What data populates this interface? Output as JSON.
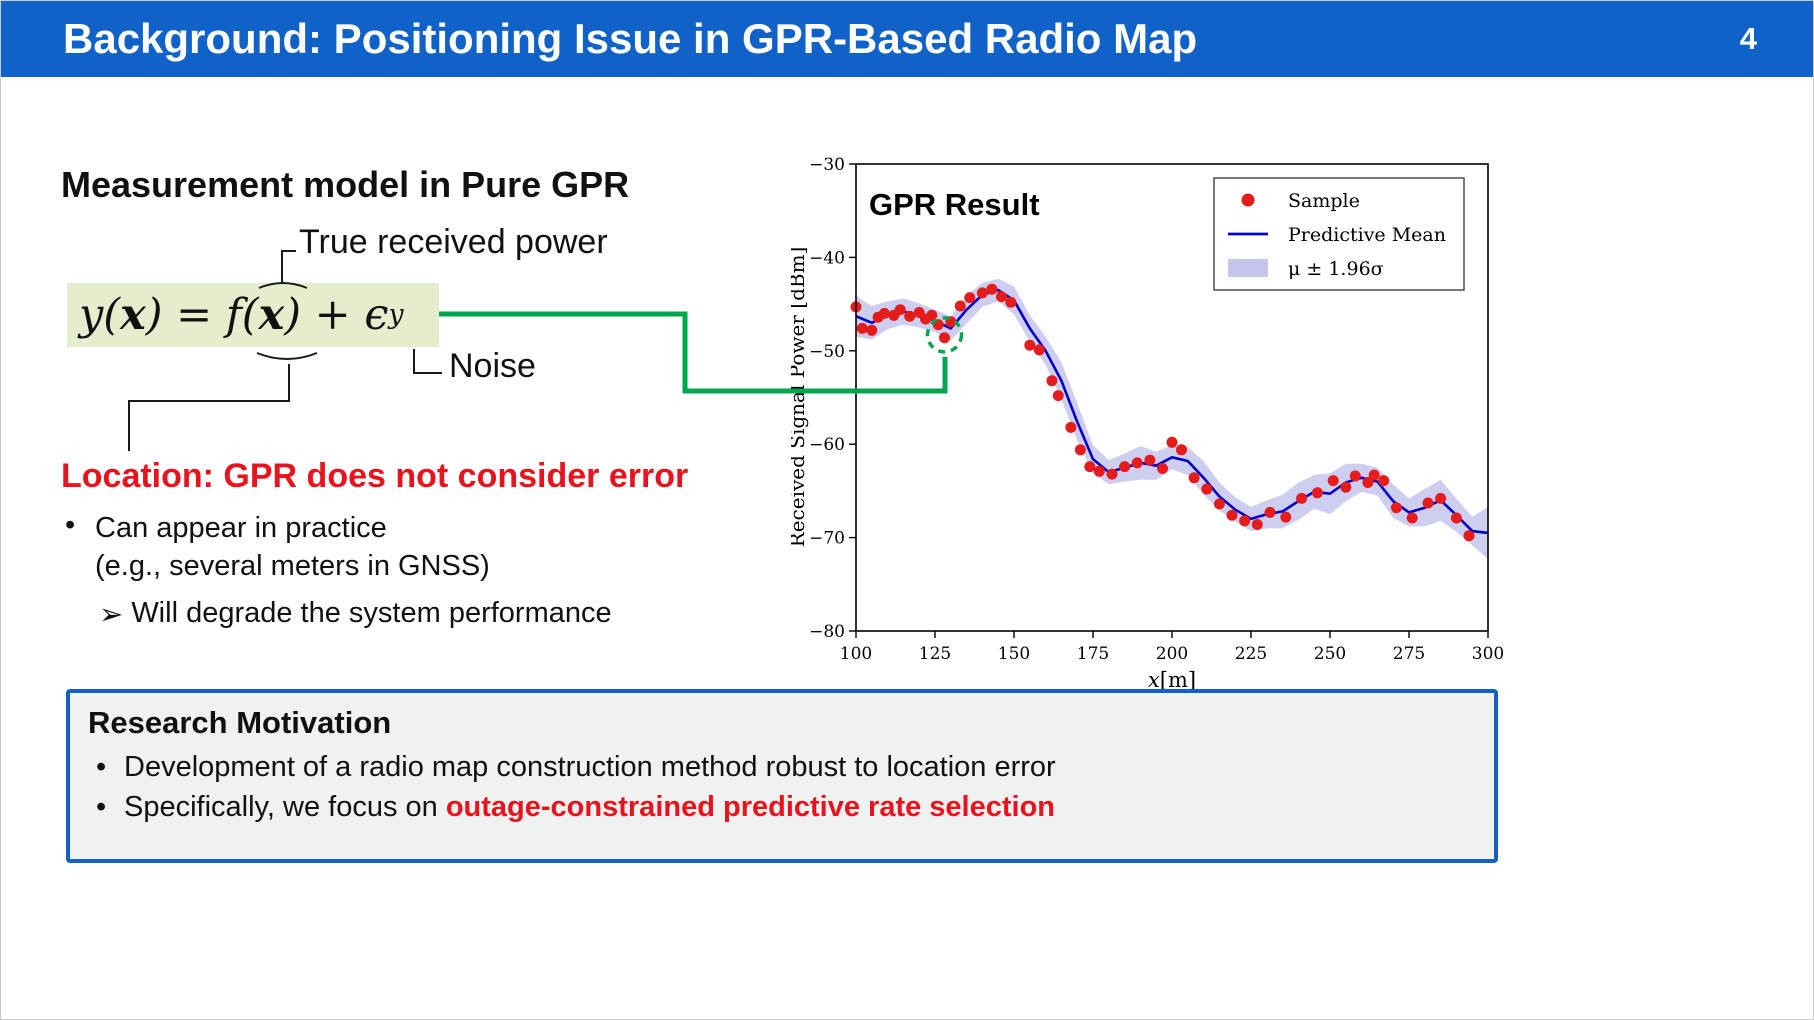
{
  "colors": {
    "header_blue": "#1062c9",
    "accent_red": "#e8131d",
    "connector_green": "#00a550",
    "formula_highlight_green": "#e4eecd",
    "chart_mean_blue": "#0000cc",
    "chart_sample_red": "#e51c1c",
    "chart_band_lavender": "#8b8bdc"
  },
  "header": {
    "title": "Background: Positioning Issue in GPR-Based Radio Map",
    "page_number": "4"
  },
  "left": {
    "heading": "Measurement model in Pure GPR",
    "true_power_label": "True received power",
    "formula": {
      "pre": "y(",
      "x1": "x",
      "mid": ") = f(",
      "x2": "x",
      "post": ") + ϵ",
      "sub": "y"
    },
    "noise_label": "Noise",
    "location_heading": "Location: GPR does not consider error",
    "bullets": [
      {
        "marker": "•",
        "lines": [
          "Can appear in practice",
          "(e.g., several meters in GNSS)"
        ]
      },
      {
        "marker": "➢",
        "text": "Will degrade the system performance"
      }
    ]
  },
  "motivation": {
    "title": "Research Motivation",
    "bullets": [
      {
        "marker": "•",
        "text": "Development of a radio map construction method robust to location error",
        "highlight": ""
      },
      {
        "marker": "•",
        "text": "Specifically, we focus on ",
        "highlight": "outage-constrained predictive rate selection"
      }
    ]
  },
  "chart_data": {
    "type": "line",
    "title": "GPR Result",
    "xlabel_var": "x",
    "xlabel_unit": "[m]",
    "ylabel": "Received Signal Power [dBm]",
    "xlim": [
      100,
      300
    ],
    "ylim": [
      -80,
      -30
    ],
    "xticks": [
      100,
      125,
      150,
      175,
      200,
      225,
      250,
      275,
      300
    ],
    "yticks": [
      -30,
      -40,
      -50,
      -60,
      -70,
      -80
    ],
    "legend": [
      {
        "marker": "dot",
        "label": "Sample"
      },
      {
        "marker": "line",
        "label": "Predictive Mean"
      },
      {
        "marker": "patch",
        "label": "μ ± 1.96σ"
      }
    ],
    "x": [
      100,
      105,
      110,
      115,
      120,
      125,
      130,
      135,
      140,
      145,
      150,
      155,
      160,
      165,
      170,
      175,
      180,
      185,
      190,
      195,
      200,
      205,
      210,
      215,
      220,
      225,
      230,
      235,
      240,
      245,
      250,
      255,
      260,
      265,
      270,
      275,
      280,
      285,
      290,
      295,
      300
    ],
    "mean": [
      -46.3,
      -47.0,
      -46.2,
      -45.8,
      -46.2,
      -46.8,
      -47.6,
      -45.6,
      -44.0,
      -43.5,
      -44.6,
      -47.6,
      -50.0,
      -53.2,
      -57.6,
      -61.6,
      -63.0,
      -62.5,
      -62.0,
      -62.3,
      -61.4,
      -61.8,
      -63.6,
      -65.6,
      -67.0,
      -68.0,
      -67.5,
      -67.2,
      -66.1,
      -65.1,
      -65.3,
      -64.1,
      -63.6,
      -64.0,
      -66.1,
      -67.3,
      -66.8,
      -66.0,
      -67.6,
      -69.3,
      -69.5
    ],
    "band_upper": [
      -44.1,
      -45.2,
      -44.7,
      -44.4,
      -44.9,
      -45.6,
      -46.3,
      -44.1,
      -42.7,
      -42.3,
      -43.1,
      -46.2,
      -48.5,
      -51.2,
      -55.6,
      -60.1,
      -61.7,
      -61.0,
      -60.2,
      -60.8,
      -60.1,
      -60.3,
      -61.8,
      -64.1,
      -65.7,
      -66.7,
      -66.0,
      -65.4,
      -64.1,
      -63.3,
      -63.1,
      -62.1,
      -62.1,
      -62.5,
      -64.3,
      -65.8,
      -64.8,
      -63.8,
      -65.8,
      -67.8,
      -66.7
    ],
    "band_lower": [
      -48.5,
      -48.8,
      -47.7,
      -47.2,
      -47.5,
      -48.0,
      -48.9,
      -47.1,
      -45.3,
      -44.7,
      -46.1,
      -49.0,
      -51.5,
      -55.2,
      -59.6,
      -63.1,
      -64.3,
      -64.0,
      -63.8,
      -63.8,
      -62.7,
      -63.3,
      -65.4,
      -67.1,
      -68.3,
      -69.3,
      -69.0,
      -69.0,
      -68.1,
      -66.9,
      -67.5,
      -66.1,
      -65.1,
      -65.5,
      -67.9,
      -68.8,
      -68.8,
      -68.2,
      -69.4,
      -70.8,
      -72.3
    ],
    "samples": [
      [
        100,
        -45.3
      ],
      [
        102,
        -47.6
      ],
      [
        105,
        -47.8
      ],
      [
        107,
        -46.4
      ],
      [
        109,
        -46.0
      ],
      [
        112,
        -46.2
      ],
      [
        114,
        -45.6
      ],
      [
        117,
        -46.3
      ],
      [
        120,
        -45.9
      ],
      [
        122,
        -46.6
      ],
      [
        124,
        -46.2
      ],
      [
        126,
        -47.2
      ],
      [
        128,
        -48.6
      ],
      [
        130,
        -46.9
      ],
      [
        133,
        -45.2
      ],
      [
        136,
        -44.3
      ],
      [
        140,
        -43.8
      ],
      [
        143,
        -43.4
      ],
      [
        146,
        -44.2
      ],
      [
        149,
        -44.8
      ],
      [
        155,
        -49.4
      ],
      [
        158,
        -49.9
      ],
      [
        162,
        -53.2
      ],
      [
        164,
        -54.8
      ],
      [
        168,
        -58.2
      ],
      [
        171,
        -60.6
      ],
      [
        174,
        -62.4
      ],
      [
        177,
        -62.9
      ],
      [
        181,
        -63.2
      ],
      [
        185,
        -62.4
      ],
      [
        189,
        -62.0
      ],
      [
        193,
        -61.7
      ],
      [
        197,
        -62.6
      ],
      [
        200,
        -59.8
      ],
      [
        203,
        -60.6
      ],
      [
        207,
        -63.6
      ],
      [
        211,
        -64.8
      ],
      [
        215,
        -66.4
      ],
      [
        219,
        -67.6
      ],
      [
        223,
        -68.2
      ],
      [
        227,
        -68.6
      ],
      [
        231,
        -67.3
      ],
      [
        236,
        -67.8
      ],
      [
        241,
        -65.8
      ],
      [
        246,
        -65.2
      ],
      [
        251,
        -63.9
      ],
      [
        255,
        -64.6
      ],
      [
        258,
        -63.4
      ],
      [
        262,
        -64.1
      ],
      [
        264,
        -63.3
      ],
      [
        267,
        -63.9
      ],
      [
        271,
        -66.8
      ],
      [
        276,
        -67.9
      ],
      [
        281,
        -66.3
      ],
      [
        285,
        -65.8
      ],
      [
        290,
        -67.9
      ],
      [
        294,
        -69.8
      ]
    ],
    "annotation_circle": {
      "x": 128,
      "y": -48.3
    }
  }
}
